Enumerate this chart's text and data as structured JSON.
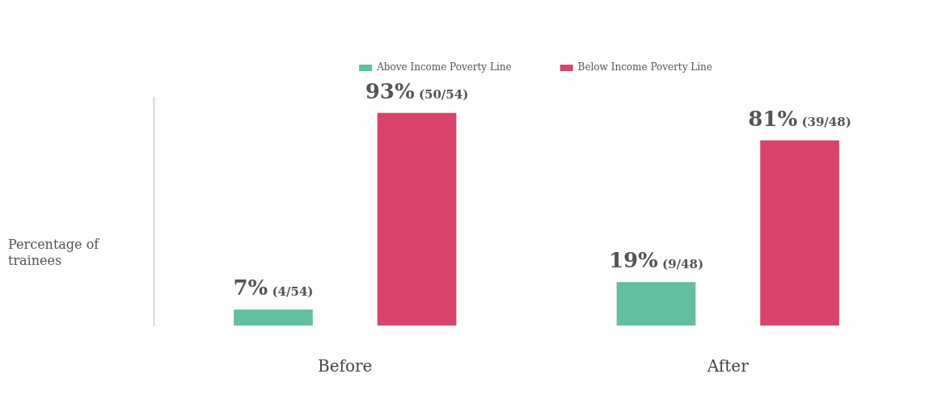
{
  "chart_data": {
    "type": "bar",
    "ylabel": "Percentage of trainees",
    "categories": [
      "Before",
      "After"
    ],
    "series": [
      {
        "name": "Above Income Poverty Line",
        "color": "#62bfa0",
        "values": [
          7,
          19
        ],
        "value_labels": [
          "7% (4/54)",
          "19% (9/48)"
        ]
      },
      {
        "name": "Below Income Poverty Line",
        "color": "#d9446a",
        "values": [
          93,
          81
        ],
        "value_labels": [
          "93% (50/54)",
          "81% (39/48)"
        ]
      }
    ],
    "legend": "top",
    "grid": false,
    "tick_labels": "x"
  }
}
